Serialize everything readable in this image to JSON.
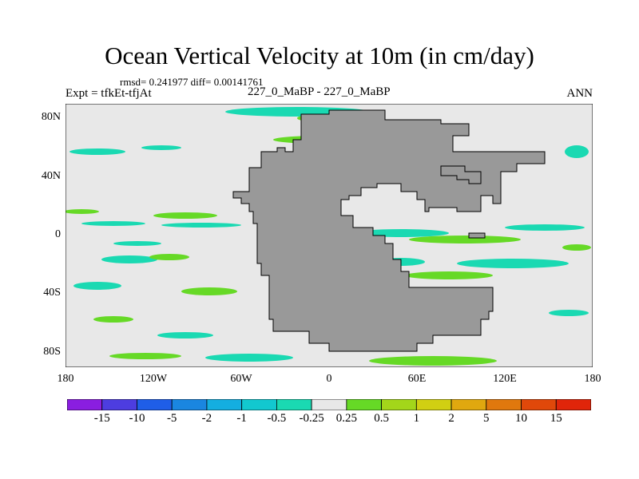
{
  "title": "Ocean Vertical Velocity at 10m (in cm/day)",
  "stats_line": "rmsd= 0.241977 diff= 0.00141761",
  "experiment": "Expt = tfkEt-tfjAt",
  "center_label": "227_0_MaBP - 227_0_MaBP",
  "season": "ANN",
  "colors": {
    "ocean_background": "#e8e8e8",
    "land": "#999999",
    "coastline": "#000000"
  },
  "map": {
    "lon_range": [
      -180,
      180
    ],
    "lat_range": [
      -90,
      90
    ],
    "y_ticks": [
      {
        "label": "80N",
        "lat": 80
      },
      {
        "label": "40N",
        "lat": 40
      },
      {
        "label": "0",
        "lat": 0
      },
      {
        "label": "40S",
        "lat": -40
      },
      {
        "label": "80S",
        "lat": -80
      }
    ],
    "x_ticks": [
      {
        "label": "180",
        "lon": -180
      },
      {
        "label": "120W",
        "lon": -120
      },
      {
        "label": "60W",
        "lon": -60
      },
      {
        "label": "0",
        "lon": 0
      },
      {
        "label": "60E",
        "lon": 60
      },
      {
        "label": "120E",
        "lon": 120
      },
      {
        "label": "180",
        "lon": 180
      }
    ]
  },
  "colorbar": {
    "labels": [
      "-15",
      "-10",
      "-5",
      "-2",
      "-1",
      "-0.5",
      "-0.25",
      "0.25",
      "0.5",
      "1",
      "2",
      "5",
      "10",
      "15"
    ],
    "colors": [
      "#8a1ee0",
      "#4d3de0",
      "#1f5ee8",
      "#1a86e0",
      "#14aee0",
      "#12c8cf",
      "#1ad9b2",
      "#e8e8e8",
      "#66d926",
      "#a3d61a",
      "#d1cf12",
      "#e0a80f",
      "#e0780d",
      "#e0480a",
      "#e0250a"
    ]
  }
}
